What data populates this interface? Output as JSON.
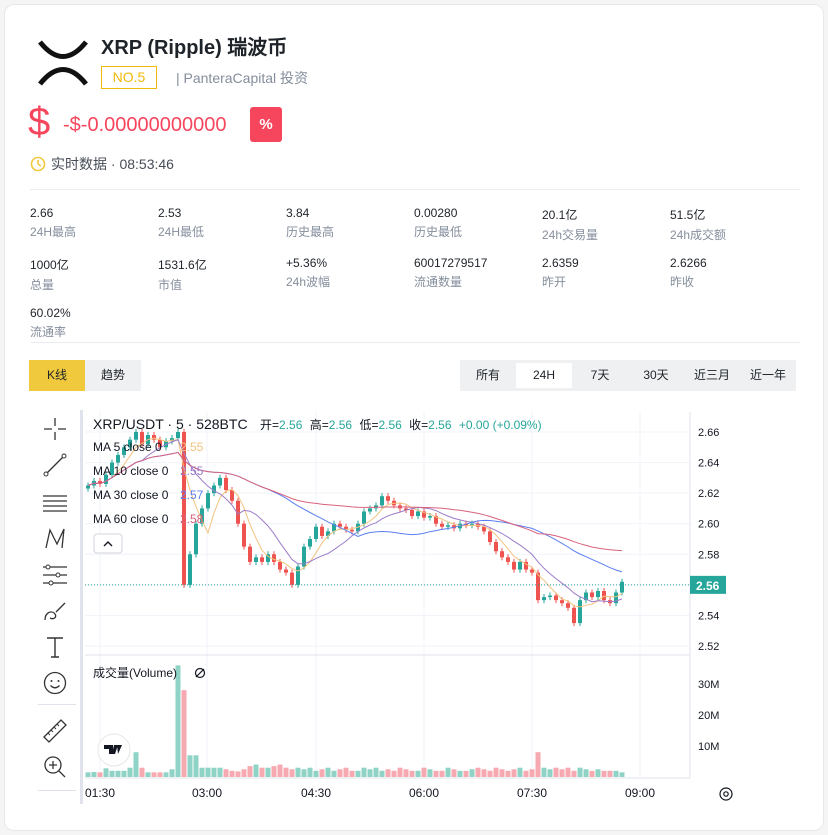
{
  "coin": {
    "name": "XRP (Ripple) 瑞波币",
    "rank": "NO.5",
    "investor": "| PanteraCapital 投资",
    "currency_symbol": "$",
    "price": "-$-0.00000000000",
    "pct_button": "%",
    "realtime": "实时数据 · 08:53:46"
  },
  "stats": [
    {
      "value": "2.66",
      "label": "24H最高"
    },
    {
      "value": "2.53",
      "label": "24H最低"
    },
    {
      "value": "3.84",
      "label": "历史最高"
    },
    {
      "value": "0.00280",
      "label": "历史最低"
    },
    {
      "value": "20.1亿",
      "label": "24h交易量"
    },
    {
      "value": "51.5亿",
      "label": "24h成交额"
    },
    {
      "value": "1000亿",
      "label": "总量"
    },
    {
      "value": "1531.6亿",
      "label": "市值"
    },
    {
      "value": "+5.36%",
      "label": "24h波幅"
    },
    {
      "value": "60017279517",
      "label": "流通数量"
    },
    {
      "value": "2.6359",
      "label": "昨开"
    },
    {
      "value": "2.6266",
      "label": "昨收"
    },
    {
      "value": "60.02%",
      "label": "流通率"
    }
  ],
  "view_tabs": [
    {
      "label": "K线",
      "active": true
    },
    {
      "label": "趋势",
      "active": false
    }
  ],
  "range_tabs": [
    {
      "label": "所有"
    },
    {
      "label": "24H",
      "active": true
    },
    {
      "label": "7天"
    },
    {
      "label": "30天"
    },
    {
      "label": "近三月"
    },
    {
      "label": "近一年"
    }
  ],
  "colors": {
    "up": "#26a69a",
    "down": "#ef5350",
    "accent": "#f0c93d",
    "ma5": "#f3c37e",
    "ma10": "#9c7cc9",
    "ma30": "#5b7ff0",
    "ma60": "#d9627d"
  },
  "chart_data": {
    "type": "candlestick",
    "symbol": "XRP/USDT · 5 · 528BTC",
    "ohlc": {
      "open_label": "开=",
      "open": "2.56",
      "high_label": "高=",
      "high": "2.56",
      "low_label": "低=",
      "low": "2.56",
      "close_label": "收=",
      "close": "2.56",
      "change": "+0.00 (+0.09%)"
    },
    "ma_legend": [
      {
        "label": "MA 5 close 0",
        "value": "2.55"
      },
      {
        "label": "MA 10 close 0",
        "value": "2.55"
      },
      {
        "label": "MA 30 close 0",
        "value": "2.57"
      },
      {
        "label": "MA 60 close 0",
        "value": "2.58"
      }
    ],
    "y_ticks": [
      "2.66",
      "2.64",
      "2.62",
      "2.60",
      "2.58",
      "2.56",
      "2.54",
      "2.52"
    ],
    "ylim": [
      2.52,
      2.66
    ],
    "last_price": "2.56",
    "x_ticks": [
      "01:30",
      "03:00",
      "04:30",
      "06:00",
      "07:30",
      "09:00"
    ],
    "interval_minutes": 5,
    "closes": [
      2.625,
      2.628,
      2.626,
      2.632,
      2.64,
      2.645,
      2.65,
      2.655,
      2.66,
      2.652,
      2.658,
      2.655,
      2.65,
      2.654,
      2.656,
      2.66,
      2.56,
      2.58,
      2.6,
      2.61,
      2.62,
      2.625,
      2.63,
      2.622,
      2.615,
      2.6,
      2.585,
      2.575,
      2.578,
      2.575,
      2.58,
      2.575,
      2.57,
      2.568,
      2.56,
      2.572,
      2.585,
      2.59,
      2.598,
      2.592,
      2.595,
      2.6,
      2.598,
      2.596,
      2.595,
      2.6,
      2.608,
      2.61,
      2.612,
      2.618,
      2.615,
      2.612,
      2.61,
      2.609,
      2.605,
      2.608,
      2.604,
      2.605,
      2.6,
      2.598,
      2.599,
      2.597,
      2.6,
      2.599,
      2.6,
      2.598,
      2.595,
      2.588,
      2.582,
      2.578,
      2.575,
      2.57,
      2.575,
      2.57,
      2.568,
      2.55,
      2.552,
      2.553,
      2.55,
      2.548,
      2.545,
      2.535,
      2.55,
      2.555,
      2.552,
      2.556,
      2.55,
      2.548,
      2.555,
      2.562
    ],
    "volume_title": "成交量(Volume)",
    "volume_ticks": [
      "30M",
      "20M",
      "10M"
    ],
    "volumes_m": [
      1.5,
      1.6,
      1.5,
      2.8,
      2,
      2,
      2,
      3,
      8,
      3,
      1.5,
      1.5,
      1.5,
      1.5,
      2.5,
      36,
      28,
      7,
      7,
      3,
      3,
      3,
      3,
      2.5,
      2,
      1.8,
      2.5,
      3.5,
      4,
      3,
      3,
      3.5,
      4,
      3,
      2.5,
      3,
      2.5,
      3,
      2,
      2.5,
      3,
      2,
      2.5,
      3,
      2,
      2,
      3,
      2.5,
      3,
      2,
      2.5,
      2,
      3,
      2.5,
      2,
      2,
      3,
      2.5,
      2,
      2,
      3,
      2.5,
      2,
      2,
      2.5,
      3,
      2.5,
      2,
      3,
      2.5,
      2,
      2.5,
      3,
      2,
      2.5,
      8,
      3,
      2.5,
      3,
      2.5,
      3,
      2,
      3,
      2.5,
      2,
      2.5,
      2,
      2,
      2,
      1.5
    ]
  }
}
